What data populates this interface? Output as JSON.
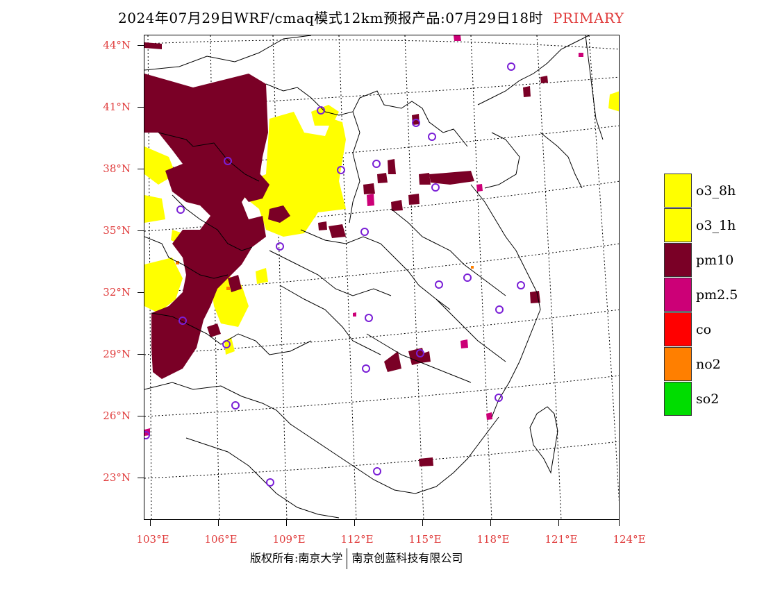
{
  "header": {
    "title": "2024年07月29日WRF/cmaq模式12km预报产品:07月29日18时",
    "tag": "PRIMARY"
  },
  "map": {
    "lat_labels": [
      "44°N",
      "41°N",
      "38°N",
      "35°N",
      "32°N",
      "29°N",
      "26°N",
      "23°N"
    ],
    "lon_labels": [
      "103°E",
      "106°E",
      "109°E",
      "112°E",
      "115°E",
      "118°E",
      "121°E",
      "124°E"
    ],
    "colors": {
      "o3_8h": "#ffff00",
      "o3_1h": "#ffff00",
      "pm10": "#7a0026",
      "pm25": "#cc0077",
      "station": "#7a1fd6"
    }
  },
  "legend": {
    "items": [
      {
        "label": "o3_8h",
        "color": "#ffff00"
      },
      {
        "label": "o3_1h",
        "color": "#ffff00"
      },
      {
        "label": "pm10",
        "color": "#7a0026"
      },
      {
        "label": "pm2.5",
        "color": "#cc0077"
      },
      {
        "label": "co",
        "color": "#ff0000"
      },
      {
        "label": "no2",
        "color": "#ff7f00"
      },
      {
        "label": "so2",
        "color": "#00dd00"
      }
    ]
  },
  "footer": {
    "left": "版权所有:南京大学",
    "right": "南京创蓝科技有限公司"
  }
}
